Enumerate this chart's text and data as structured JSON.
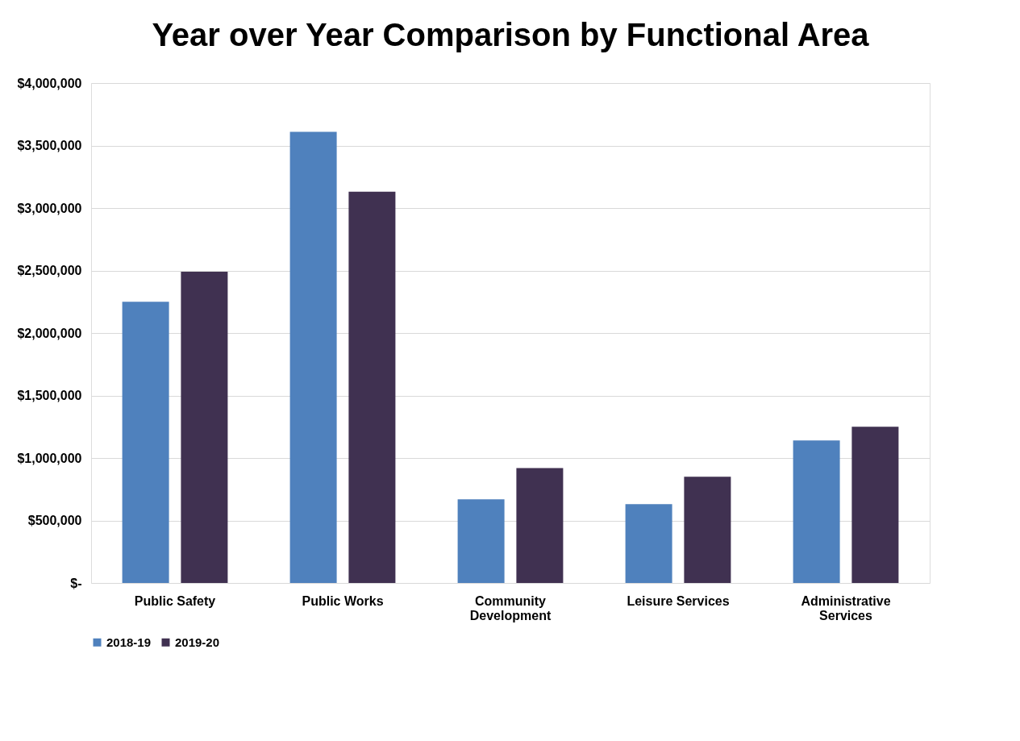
{
  "chart_data": {
    "type": "bar",
    "title": "Year over Year Comparison by Functional Area",
    "categories": [
      "Public Safety",
      "Public Works",
      "Community Development",
      "Leisure Services",
      "Administrative Services"
    ],
    "series": [
      {
        "name": "2018-19",
        "color": "#4f81bd",
        "values": [
          2250000,
          3610000,
          670000,
          630000,
          1140000
        ]
      },
      {
        "name": "2019-20",
        "color": "#403151",
        "values": [
          2490000,
          3130000,
          920000,
          850000,
          1250000
        ]
      }
    ],
    "ylim": [
      0,
      4000000
    ],
    "yticks": [
      {
        "value": 0,
        "label": "$-"
      },
      {
        "value": 500000,
        "label": "$500,000"
      },
      {
        "value": 1000000,
        "label": "$1,000,000"
      },
      {
        "value": 1500000,
        "label": "$1,500,000"
      },
      {
        "value": 2000000,
        "label": "$2,000,000"
      },
      {
        "value": 2500000,
        "label": "$2,500,000"
      },
      {
        "value": 3000000,
        "label": "$3,000,000"
      },
      {
        "value": 3500000,
        "label": "$3,500,000"
      },
      {
        "value": 4000000,
        "label": "$4,000,000"
      }
    ],
    "grid": "y",
    "legend": "bottom"
  }
}
